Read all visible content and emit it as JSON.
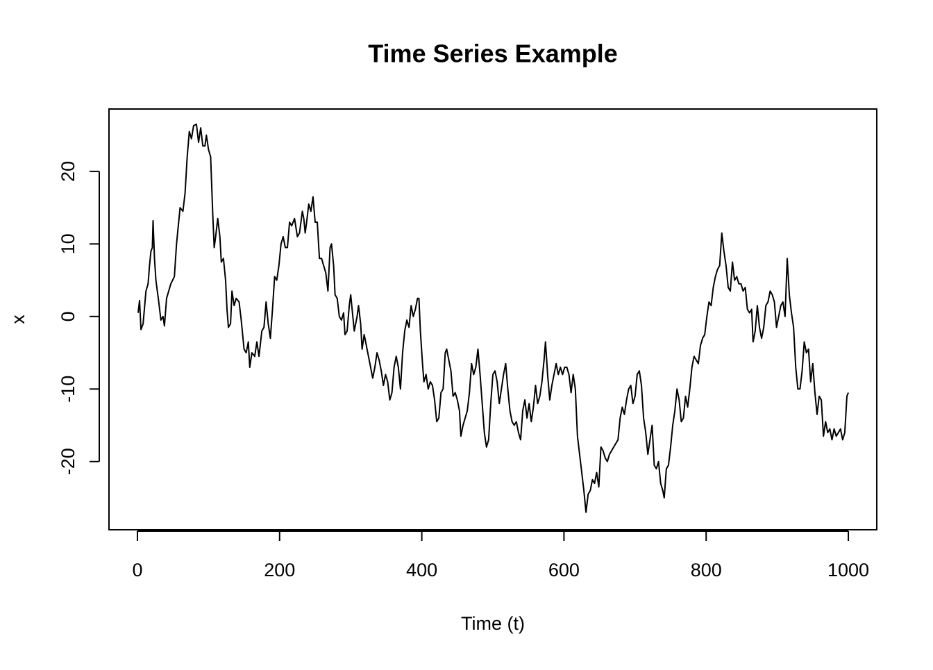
{
  "chart_data": {
    "type": "line",
    "title": "Time Series Example",
    "x_label": "Time (t)",
    "y_label": "x",
    "xlim": [
      -40,
      1040
    ],
    "ylim": [
      -29.4,
      28.6
    ],
    "xticks": [
      0,
      200,
      400,
      600,
      800,
      1000
    ],
    "yticks": [
      -20,
      -10,
      0,
      10,
      20
    ],
    "x": [
      1,
      3,
      5,
      8,
      12,
      15,
      17,
      19,
      21,
      22,
      24,
      26,
      30,
      33,
      36,
      38,
      41,
      44,
      47,
      52,
      55,
      58,
      60,
      64,
      67,
      70,
      73,
      76,
      79,
      83,
      86,
      89,
      92,
      95,
      97,
      100,
      103,
      106,
      108,
      110,
      113,
      116,
      118,
      121,
      124,
      126,
      128,
      131,
      133,
      136,
      139,
      143,
      146,
      150,
      153,
      156,
      158,
      161,
      165,
      168,
      171,
      175,
      178,
      181,
      184,
      187,
      190,
      193,
      196,
      199,
      202,
      205,
      208,
      211,
      214,
      217,
      221,
      225,
      228,
      232,
      234,
      236,
      238,
      241,
      244,
      247,
      250,
      253,
      256,
      259,
      262,
      265,
      268,
      271,
      273,
      276,
      278,
      281,
      284,
      287,
      290,
      292,
      295,
      298,
      300,
      303,
      305,
      309,
      311,
      314,
      316,
      319,
      322,
      325,
      328,
      331,
      334,
      337,
      340,
      343,
      346,
      349,
      352,
      355,
      358,
      361,
      364,
      367,
      370,
      373,
      376,
      379,
      382,
      385,
      388,
      391,
      394,
      396,
      398,
      401,
      403,
      406,
      409,
      412,
      415,
      418,
      421,
      424,
      427,
      430,
      433,
      435,
      438,
      441,
      444,
      447,
      450,
      453,
      455,
      458,
      461,
      464,
      467,
      470,
      473,
      476,
      479,
      482,
      485,
      488,
      491,
      494,
      497,
      500,
      503,
      506,
      509,
      512,
      515,
      518,
      521,
      524,
      527,
      530,
      533,
      536,
      539,
      542,
      545,
      548,
      551,
      554,
      557,
      560,
      563,
      566,
      569,
      572,
      574,
      577,
      580,
      583,
      586,
      589,
      592,
      595,
      598,
      601,
      604,
      607,
      610,
      613,
      616,
      619,
      622,
      625,
      628,
      631,
      634,
      637,
      640,
      643,
      646,
      649,
      652,
      655,
      658,
      661,
      664,
      667,
      670,
      673,
      676,
      679,
      682,
      685,
      688,
      691,
      694,
      697,
      700,
      703,
      706,
      709,
      712,
      715,
      718,
      721,
      724,
      727,
      730,
      733,
      736,
      739,
      741,
      744,
      747,
      750,
      753,
      756,
      759,
      762,
      765,
      768,
      771,
      774,
      777,
      780,
      783,
      786,
      789,
      792,
      795,
      798,
      801,
      804,
      807,
      810,
      813,
      816,
      819,
      822,
      825,
      828,
      831,
      834,
      837,
      840,
      843,
      846,
      849,
      852,
      855,
      858,
      861,
      864,
      866,
      869,
      872,
      875,
      878,
      881,
      884,
      887,
      890,
      893,
      896,
      899,
      902,
      905,
      908,
      911,
      914,
      917,
      920,
      923,
      926,
      929,
      932,
      935,
      938,
      941,
      944,
      947,
      950,
      953,
      956,
      959,
      962,
      965,
      968,
      971,
      974,
      977,
      980,
      983,
      986,
      989,
      992,
      995,
      998,
      1000
    ],
    "series": [
      {
        "color": "#000000",
        "values": [
          0.5,
          2.2,
          -1.8,
          -1,
          3.5,
          4.5,
          7,
          9,
          9.5,
          13.2,
          8,
          5,
          2,
          -0.5,
          0,
          -1.3,
          2.5,
          3.5,
          4.5,
          5.5,
          10,
          13,
          15,
          14.5,
          17,
          22,
          25.5,
          24.5,
          26.3,
          26.5,
          24,
          26,
          23.5,
          23.5,
          25,
          23,
          22,
          14,
          9.5,
          11,
          13.5,
          11,
          7.5,
          8,
          5,
          1,
          -1.5,
          -1,
          3.5,
          1.5,
          2.5,
          2,
          -0.5,
          -4.5,
          -5,
          -3.5,
          -7,
          -5,
          -5.5,
          -3.5,
          -5.5,
          -2,
          -1.5,
          2,
          -1,
          -3,
          1,
          5.5,
          5,
          7,
          10,
          11,
          9.5,
          9.5,
          13,
          12.5,
          13.5,
          11,
          11.5,
          14.5,
          13.5,
          11.5,
          13,
          15.5,
          14.5,
          16.5,
          13,
          13,
          8,
          8,
          7,
          6,
          3.5,
          9.5,
          10,
          7,
          3,
          2.5,
          0,
          -0.5,
          0.5,
          -2.5,
          -2,
          1.5,
          3,
          0,
          -2,
          0,
          1.5,
          -1,
          -4.5,
          -2.5,
          -4,
          -5.5,
          -7,
          -8.5,
          -7,
          -5,
          -6,
          -7.5,
          -9.5,
          -8,
          -9,
          -11.5,
          -10.5,
          -7,
          -5.5,
          -7,
          -10,
          -5,
          -2,
          -0.5,
          -1.5,
          1.5,
          0,
          1,
          2.5,
          2.5,
          -2,
          -6.5,
          -9,
          -8,
          -10,
          -9,
          -9.5,
          -11.5,
          -14.5,
          -14,
          -10.5,
          -10,
          -5,
          -4.5,
          -6,
          -7.5,
          -11,
          -10.5,
          -11.5,
          -13,
          -16.5,
          -15,
          -14,
          -13,
          -10.5,
          -6.5,
          -8,
          -7,
          -4.5,
          -8,
          -12,
          -16,
          -18,
          -17,
          -12,
          -8,
          -7.5,
          -9,
          -12,
          -10,
          -8,
          -6.5,
          -10,
          -13,
          -14.5,
          -15,
          -14.5,
          -16,
          -17,
          -13,
          -11.5,
          -14,
          -12,
          -14.5,
          -12.5,
          -9.5,
          -12,
          -11,
          -9,
          -6,
          -3.5,
          -8,
          -11.5,
          -9.5,
          -8,
          -6.5,
          -8,
          -7,
          -8,
          -7,
          -7,
          -8,
          -10.5,
          -8,
          -10,
          -16.5,
          -19,
          -21.5,
          -24,
          -27,
          -24.5,
          -24,
          -22.5,
          -23,
          -21.5,
          -23.5,
          -18,
          -18.5,
          -19.5,
          -20,
          -19,
          -18.5,
          -18,
          -17.5,
          -17,
          -14,
          -12.5,
          -13.5,
          -11.5,
          -10,
          -9.5,
          -12,
          -11,
          -8,
          -7.5,
          -9.5,
          -14,
          -16,
          -19,
          -17,
          -15,
          -20.5,
          -21,
          -20,
          -23,
          -24,
          -25,
          -21,
          -20.5,
          -18,
          -15,
          -13,
          -10,
          -11.5,
          -14.5,
          -14,
          -11,
          -12.5,
          -10,
          -7,
          -5.5,
          -6,
          -6.5,
          -4,
          -3,
          -2.5,
          0,
          2,
          1.5,
          4,
          5.5,
          6.5,
          7,
          11.5,
          9,
          7,
          4,
          3.5,
          7.5,
          5,
          5.5,
          4.5,
          4.5,
          3.5,
          4,
          1,
          0.5,
          1,
          -3.5,
          -2,
          1.5,
          -1.5,
          -3,
          -1.5,
          1.5,
          2,
          3.5,
          3,
          2,
          -1.5,
          0,
          1.5,
          2,
          0,
          8,
          3,
          0.5,
          -1.5,
          -7,
          -10,
          -10,
          -7.5,
          -3.5,
          -5,
          -4.5,
          -9,
          -6.5,
          -10.5,
          -13.5,
          -11,
          -11.5,
          -16.5,
          -14.5,
          -16,
          -15.5,
          -17,
          -15.5,
          -16.5,
          -16,
          -15.5,
          -17,
          -16,
          -11,
          -10.5
        ]
      }
    ]
  }
}
